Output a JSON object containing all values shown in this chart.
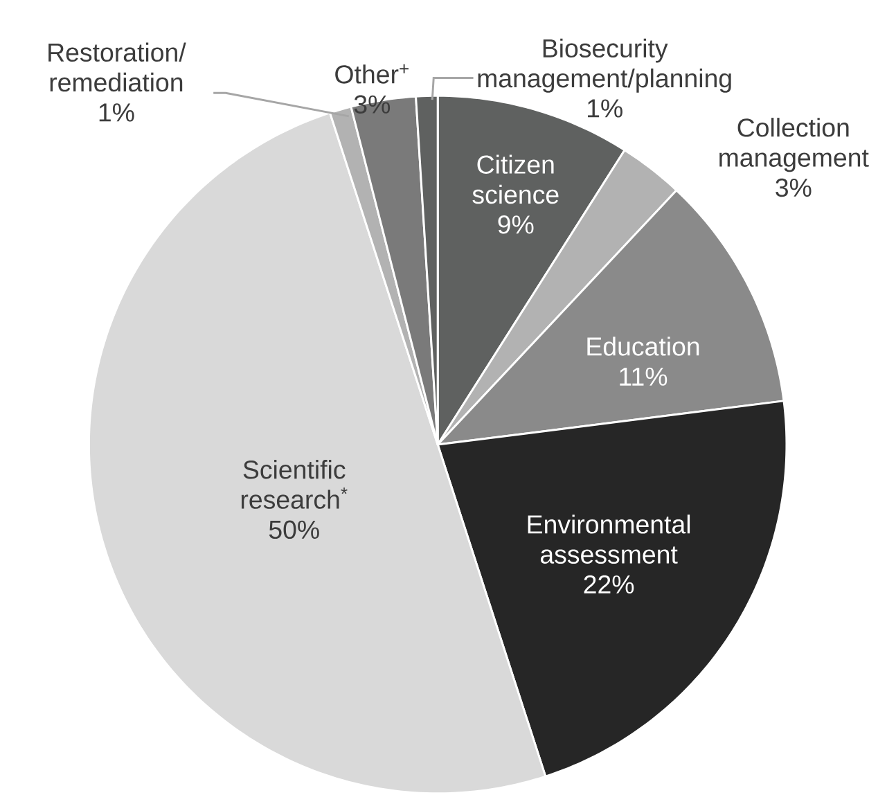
{
  "chart_data": {
    "type": "pie",
    "categories": [
      "Citizen science",
      "Collection management",
      "Education",
      "Environmental assessment",
      "Scientific research$^{*}$",
      "Restoration/ remediation",
      "Other$^{+}$",
      "Biosecurity management/planning"
    ],
    "values": [
      9,
      3,
      11,
      22,
      50,
      1,
      3,
      1
    ],
    "value_labels": [
      "9%",
      "3%",
      "11%",
      "22%",
      "50%",
      "1%",
      "3%",
      "1%"
    ],
    "colors": [
      "#5f6160",
      "#b2b2b2",
      "#8a8a8a",
      "#262626",
      "#d9d9d9",
      "#b2b2b2",
      "#7a7a7a",
      "#5f6160"
    ]
  }
}
